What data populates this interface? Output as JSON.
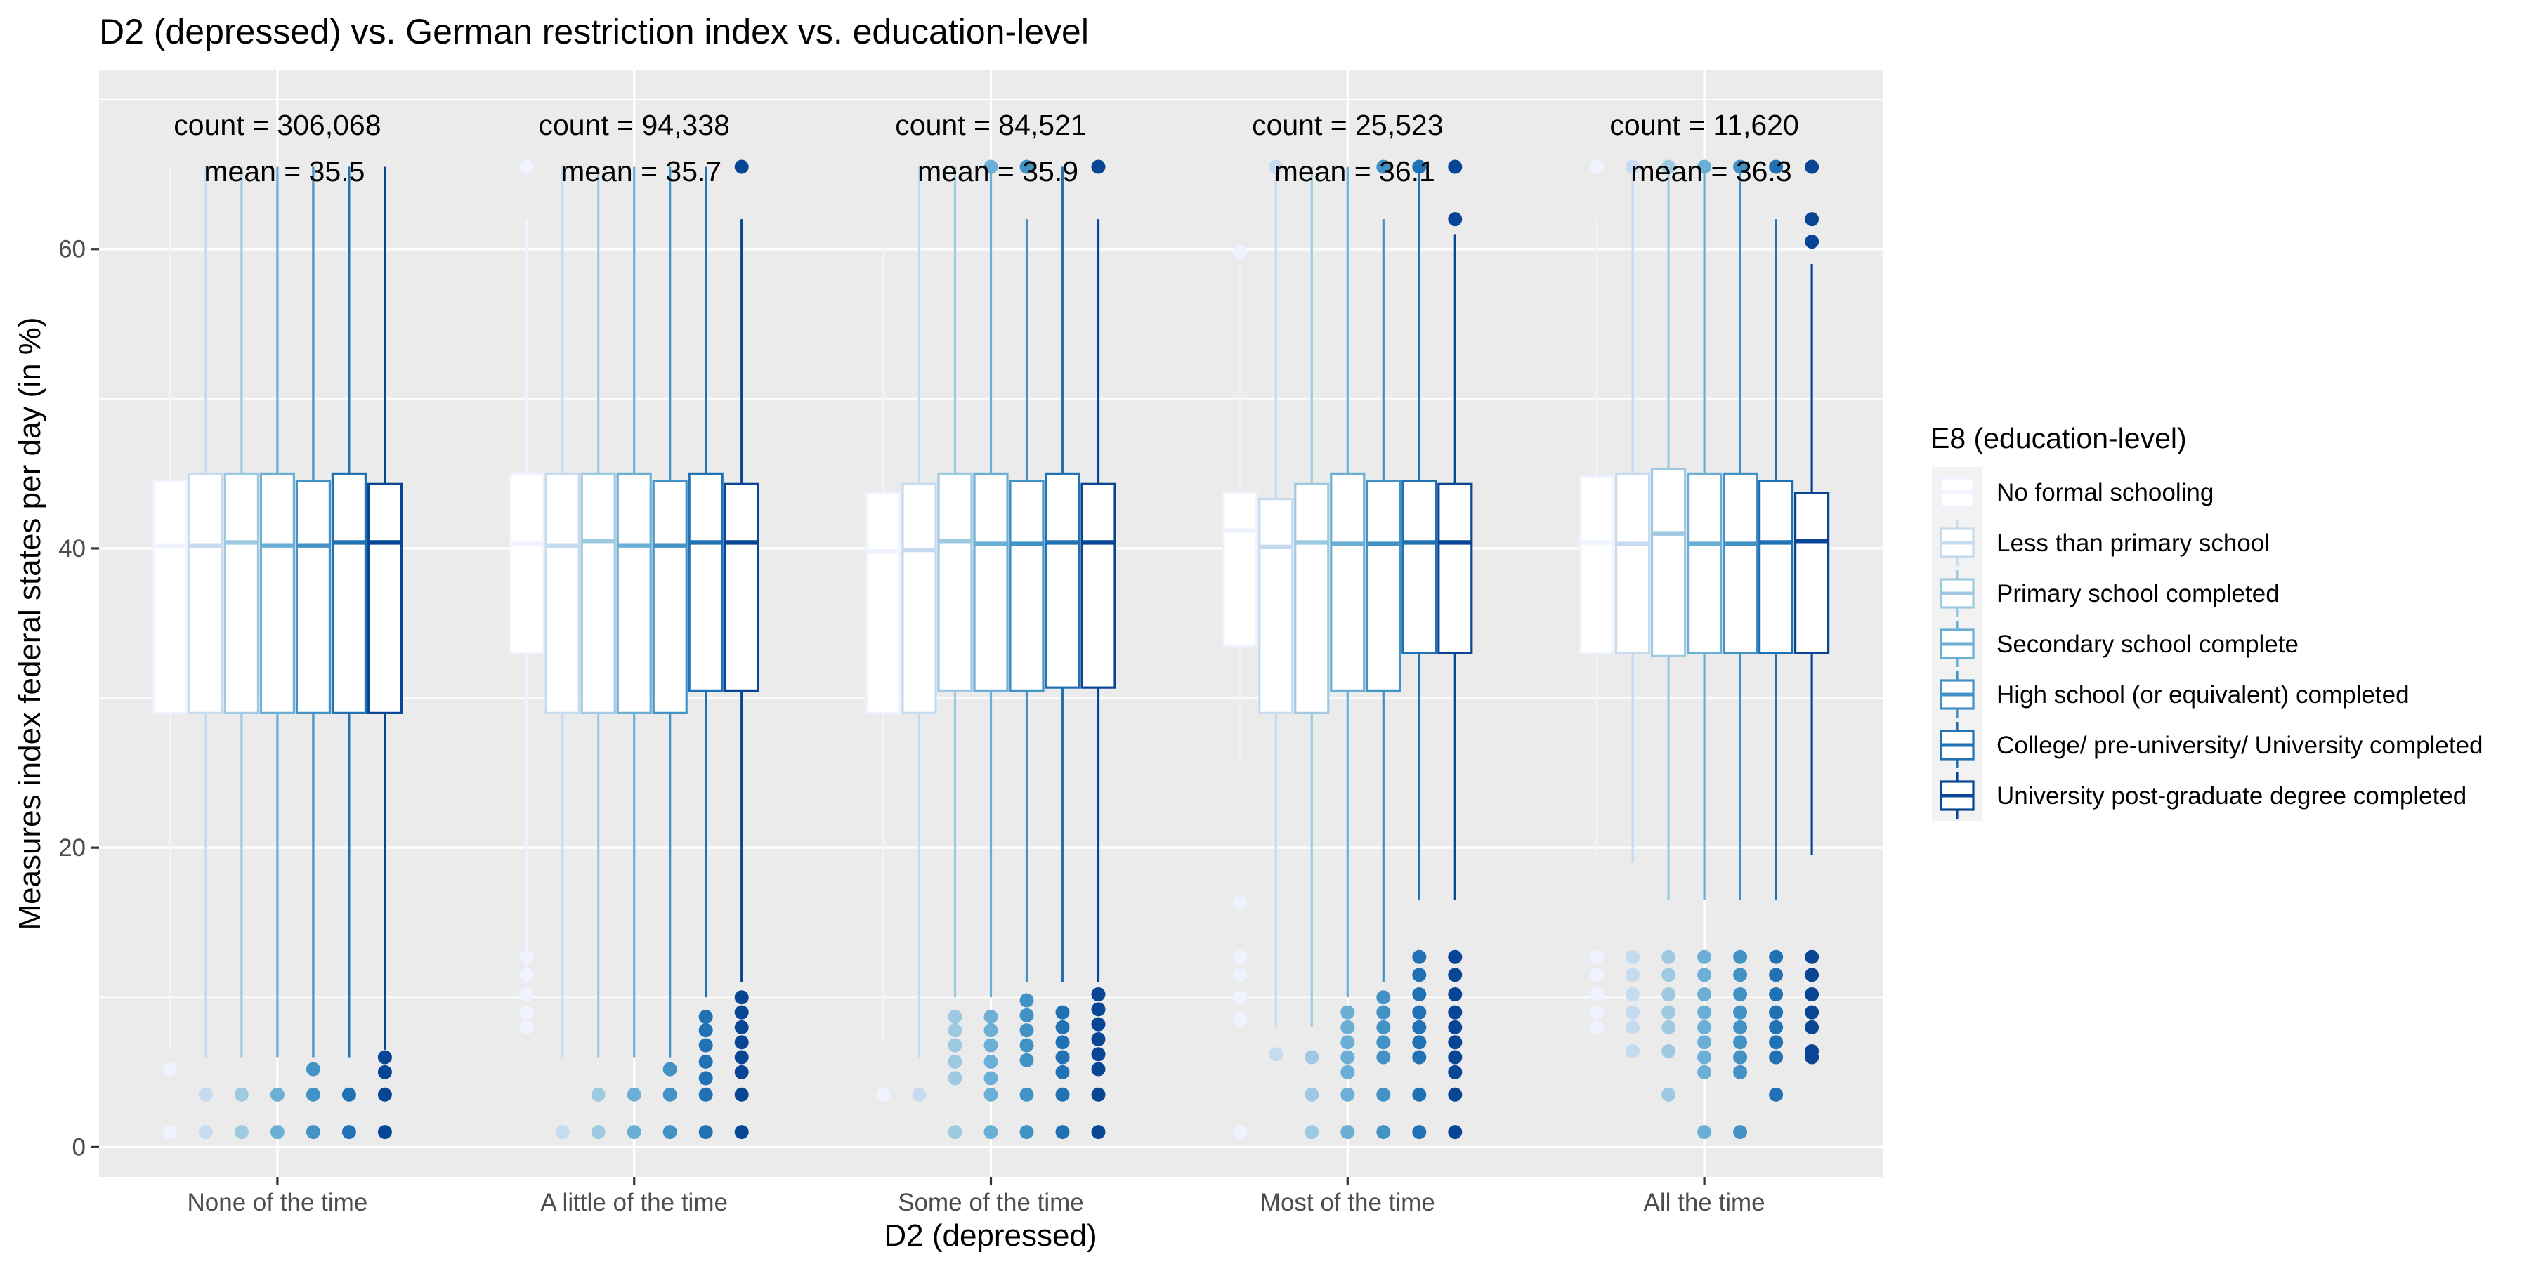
{
  "chart_data": {
    "type": "boxplot",
    "title": "D2 (depressed) vs. German restriction index vs. education-level",
    "xlabel": "D2 (depressed)",
    "ylabel": "Measures index federal states per day (in %)",
    "ylim": [
      -2,
      72
    ],
    "yticks": [
      0,
      20,
      40,
      60
    ],
    "grid": true,
    "legend_position": "right",
    "categories": [
      "None of the time",
      "A little of the time",
      "Some of the time",
      "Most of the time",
      "All the time"
    ],
    "annotations": [
      {
        "count": "count = 306,068",
        "mean": "mean = 35.5"
      },
      {
        "count": "count = 94,338",
        "mean": "mean = 35.7"
      },
      {
        "count": "count = 84,521",
        "mean": "mean = 35.9"
      },
      {
        "count": "count = 25,523",
        "mean": "mean = 36.1"
      },
      {
        "count": "count = 11,620",
        "mean": "mean = 36.3"
      }
    ],
    "legend": {
      "title": "E8 (education-level)",
      "entries": [
        {
          "label": "No formal schooling",
          "color": "#eff3ff"
        },
        {
          "label": "Less than primary school",
          "color": "#c6dbef"
        },
        {
          "label": "Primary school completed",
          "color": "#9ecae1"
        },
        {
          "label": "Secondary school complete",
          "color": "#6baed6"
        },
        {
          "label": "High school (or equivalent) completed",
          "color": "#4292c6"
        },
        {
          "label": "College/ pre-university/ University completed",
          "color": "#2171b5"
        },
        {
          "label": "University post-graduate degree completed",
          "color": "#084594"
        }
      ]
    },
    "series": [
      {
        "name": "No formal schooling",
        "boxes": [
          {
            "q1": 29,
            "median": 40.2,
            "q3": 44.5,
            "wlow": 6.5,
            "whigh": 65.5,
            "outliers": [
              5.2,
              1
            ]
          },
          {
            "q1": 33,
            "median": 40.3,
            "q3": 45,
            "wlow": 12,
            "whigh": 62,
            "outliers": [
              12.7,
              11.5,
              10.2,
              9,
              8,
              65.5
            ]
          },
          {
            "q1": 29,
            "median": 39.8,
            "q3": 43.7,
            "wlow": 7,
            "whigh": 60,
            "outliers": [
              3.5
            ]
          },
          {
            "q1": 33.5,
            "median": 41.2,
            "q3": 43.7,
            "wlow": 26,
            "whigh": 59,
            "outliers": [
              59.8,
              16.3,
              12.7,
              11.5,
              10,
              8.5,
              1
            ]
          },
          {
            "q1": 33,
            "median": 40.4,
            "q3": 44.8,
            "wlow": 19.5,
            "whigh": 62,
            "outliers": [
              12.7,
              11.5,
              10.2,
              9,
              8,
              65.5
            ]
          }
        ]
      },
      {
        "name": "Less than primary school",
        "boxes": [
          {
            "q1": 29,
            "median": 40.2,
            "q3": 45,
            "wlow": 6,
            "whigh": 65.5,
            "outliers": [
              3.5,
              1
            ]
          },
          {
            "q1": 29,
            "median": 40.2,
            "q3": 45,
            "wlow": 6,
            "whigh": 65.5,
            "outliers": [
              1
            ]
          },
          {
            "q1": 29,
            "median": 39.9,
            "q3": 44.3,
            "wlow": 6,
            "whigh": 65.5,
            "outliers": [
              3.5
            ]
          },
          {
            "q1": 29,
            "median": 40.1,
            "q3": 43.3,
            "wlow": 8,
            "whigh": 65.5,
            "outliers": [
              6.2,
              65.5
            ]
          },
          {
            "q1": 33,
            "median": 40.3,
            "q3": 45,
            "wlow": 19,
            "whigh": 65.5,
            "outliers": [
              12.7,
              11.5,
              10.2,
              9,
              8,
              6.4,
              65.5
            ]
          }
        ]
      },
      {
        "name": "Primary school completed",
        "boxes": [
          {
            "q1": 29,
            "median": 40.4,
            "q3": 45,
            "wlow": 6,
            "whigh": 65.5,
            "outliers": [
              3.5,
              1
            ]
          },
          {
            "q1": 29,
            "median": 40.5,
            "q3": 45,
            "wlow": 6,
            "whigh": 65.5,
            "outliers": [
              3.5,
              1
            ]
          },
          {
            "q1": 30.5,
            "median": 40.5,
            "q3": 45,
            "wlow": 10,
            "whigh": 65.5,
            "outliers": [
              8.7,
              7.8,
              6.8,
              5.7,
              4.6,
              1
            ]
          },
          {
            "q1": 29,
            "median": 40.4,
            "q3": 44.3,
            "wlow": 8,
            "whigh": 65.5,
            "outliers": [
              6,
              3.5,
              1
            ]
          },
          {
            "q1": 32.8,
            "median": 41,
            "q3": 45.3,
            "wlow": 16.5,
            "whigh": 65.5,
            "outliers": [
              12.7,
              11.5,
              10.2,
              9,
              8,
              6.4,
              3.5,
              65.5
            ]
          }
        ]
      },
      {
        "name": "Secondary school complete",
        "boxes": [
          {
            "q1": 29,
            "median": 40.2,
            "q3": 45,
            "wlow": 6,
            "whigh": 65.5,
            "outliers": [
              3.5,
              1
            ]
          },
          {
            "q1": 29,
            "median": 40.2,
            "q3": 45,
            "wlow": 6,
            "whigh": 65.5,
            "outliers": [
              3.5,
              1
            ]
          },
          {
            "q1": 30.5,
            "median": 40.3,
            "q3": 45,
            "wlow": 10,
            "whigh": 65.5,
            "outliers": [
              8.7,
              7.8,
              6.8,
              5.7,
              4.6,
              3.5,
              1,
              65.5
            ]
          },
          {
            "q1": 30.5,
            "median": 40.3,
            "q3": 45,
            "wlow": 10,
            "whigh": 65.5,
            "outliers": [
              9,
              8,
              7,
              6,
              5,
              3.5,
              1
            ]
          },
          {
            "q1": 33,
            "median": 40.3,
            "q3": 45,
            "wlow": 16.5,
            "whigh": 65.5,
            "outliers": [
              12.7,
              11.5,
              10.2,
              9,
              8,
              7,
              6,
              5,
              1,
              65.5
            ]
          }
        ]
      },
      {
        "name": "High school (or equivalent) completed",
        "boxes": [
          {
            "q1": 29,
            "median": 40.2,
            "q3": 44.5,
            "wlow": 6,
            "whigh": 65.5,
            "outliers": [
              5.2,
              3.5,
              1
            ]
          },
          {
            "q1": 29,
            "median": 40.2,
            "q3": 44.5,
            "wlow": 6,
            "whigh": 65.5,
            "outliers": [
              5.2,
              3.5,
              1
            ]
          },
          {
            "q1": 30.5,
            "median": 40.3,
            "q3": 44.5,
            "wlow": 11,
            "whigh": 62,
            "outliers": [
              9.8,
              8.8,
              7.8,
              6.8,
              5.8,
              3.5,
              1,
              65.5
            ]
          },
          {
            "q1": 30.5,
            "median": 40.3,
            "q3": 44.5,
            "wlow": 11,
            "whigh": 62,
            "outliers": [
              10,
              9,
              8,
              7,
              6,
              3.5,
              1,
              65.5
            ]
          },
          {
            "q1": 33,
            "median": 40.3,
            "q3": 45,
            "wlow": 16.5,
            "whigh": 65.5,
            "outliers": [
              12.7,
              11.5,
              10.2,
              9,
              8,
              7,
              6,
              5,
              1,
              65.5
            ]
          }
        ]
      },
      {
        "name": "College/ pre-university/ University completed",
        "boxes": [
          {
            "q1": 29,
            "median": 40.4,
            "q3": 45,
            "wlow": 6,
            "whigh": 65.5,
            "outliers": [
              3.5,
              1
            ]
          },
          {
            "q1": 30.5,
            "median": 40.4,
            "q3": 45,
            "wlow": 10,
            "whigh": 65.5,
            "outliers": [
              8.7,
              7.8,
              6.8,
              5.7,
              4.6,
              3.5,
              1
            ]
          },
          {
            "q1": 30.7,
            "median": 40.4,
            "q3": 45,
            "wlow": 11,
            "whigh": 65.5,
            "outliers": [
              9,
              8,
              7,
              6,
              5,
              3.5,
              1
            ]
          },
          {
            "q1": 33,
            "median": 40.4,
            "q3": 44.5,
            "wlow": 16.5,
            "whigh": 65.5,
            "outliers": [
              12.7,
              11.5,
              10.2,
              9,
              8,
              7,
              6,
              3.5,
              1,
              65.5
            ]
          },
          {
            "q1": 33,
            "median": 40.4,
            "q3": 44.5,
            "wlow": 16.5,
            "whigh": 62,
            "outliers": [
              12.7,
              11.5,
              10.2,
              9,
              8,
              7,
              6,
              3.5,
              65.5
            ]
          }
        ]
      },
      {
        "name": "University post-graduate degree completed",
        "boxes": [
          {
            "q1": 29,
            "median": 40.4,
            "q3": 44.3,
            "wlow": 6.5,
            "whigh": 65.5,
            "outliers": [
              6,
              5,
              3.5,
              1
            ]
          },
          {
            "q1": 30.5,
            "median": 40.4,
            "q3": 44.3,
            "wlow": 11,
            "whigh": 62,
            "outliers": [
              10,
              9,
              8,
              7,
              6,
              5,
              3.5,
              1,
              65.5
            ]
          },
          {
            "q1": 30.7,
            "median": 40.4,
            "q3": 44.3,
            "wlow": 11,
            "whigh": 62,
            "outliers": [
              10.2,
              9.2,
              8.2,
              7.2,
              6.2,
              5.2,
              3.5,
              1,
              65.5
            ]
          },
          {
            "q1": 33,
            "median": 40.4,
            "q3": 44.3,
            "wlow": 16.5,
            "whigh": 61,
            "outliers": [
              12.7,
              11.5,
              10.2,
              9,
              8,
              7,
              6,
              5,
              3.5,
              1,
              62,
              65.5
            ]
          },
          {
            "q1": 33,
            "median": 40.5,
            "q3": 43.7,
            "wlow": 19.5,
            "whigh": 59,
            "outliers": [
              12.7,
              11.5,
              10.2,
              9,
              8,
              6.4,
              6,
              60.5,
              62,
              65.5
            ]
          }
        ]
      }
    ]
  }
}
